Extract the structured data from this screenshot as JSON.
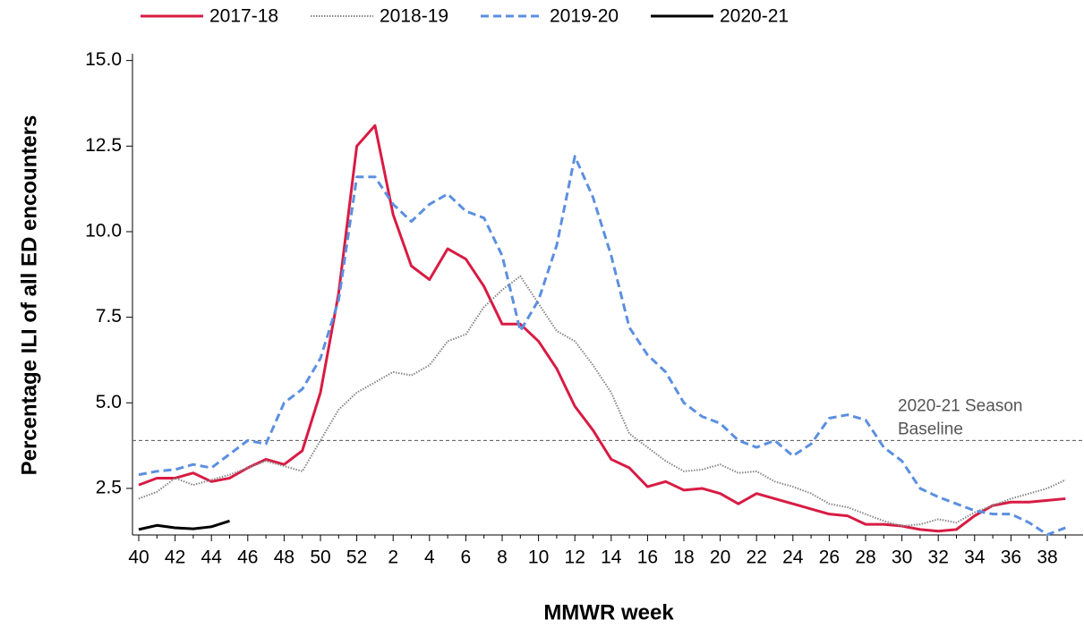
{
  "chart_data": {
    "type": "line",
    "x_label": "MMWR week",
    "y_label": "Percentage ILI of all ED encounters",
    "categories": [
      "40",
      null,
      "42",
      null,
      "44",
      null,
      "46",
      null,
      "48",
      null,
      "50",
      null,
      "52",
      null,
      "2",
      null,
      "4",
      null,
      "6",
      null,
      "8",
      null,
      "10",
      null,
      "12",
      null,
      "14",
      null,
      "16",
      null,
      "18",
      null,
      "20",
      null,
      "22",
      null,
      "24",
      null,
      "26",
      null,
      "28",
      null,
      "30",
      null,
      "32",
      null,
      "34",
      null,
      "36",
      null,
      "38",
      null
    ],
    "ylim": [
      1.14,
      15.2
    ],
    "yticks": [
      {
        "value": 15,
        "label": "15.0"
      },
      12.5,
      {
        "value": 10,
        "label": "10.0"
      },
      7.5,
      {
        "value": 5,
        "label": "5.0"
      },
      2.5
    ],
    "baseline": {
      "value": 3.9,
      "label": [
        "2020-21 Season",
        "Baseline"
      ],
      "color": "#555555"
    },
    "series": [
      {
        "name": "2017-18",
        "color": "#d81b43",
        "style": "solid",
        "values": [
          2.6,
          2.8,
          2.8,
          2.95,
          2.7,
          2.8,
          3.1,
          3.35,
          3.2,
          3.6,
          5.3,
          8.2,
          12.5,
          13.1,
          10.5,
          9.0,
          8.6,
          9.5,
          9.2,
          8.4,
          7.3,
          7.3,
          6.8,
          6.0,
          4.9,
          4.2,
          3.35,
          3.1,
          2.55,
          2.7,
          2.45,
          2.5,
          2.35,
          2.05,
          2.35,
          2.2,
          2.05,
          1.9,
          1.75,
          1.7,
          1.45,
          1.45,
          1.4,
          1.3,
          1.25,
          1.3,
          1.7,
          2.0,
          2.1,
          2.1,
          2.15,
          2.2
        ]
      },
      {
        "name": "2018-19",
        "color": "#888888",
        "style": "dotted",
        "values": [
          2.2,
          2.4,
          2.8,
          2.6,
          2.75,
          2.9,
          3.1,
          3.3,
          3.15,
          3.0,
          3.9,
          4.8,
          5.3,
          5.6,
          5.9,
          5.8,
          6.1,
          6.8,
          7.0,
          7.8,
          8.3,
          8.7,
          7.9,
          7.1,
          6.8,
          6.1,
          5.3,
          4.1,
          3.7,
          3.3,
          3.0,
          3.05,
          3.2,
          2.95,
          3.0,
          2.7,
          2.55,
          2.35,
          2.05,
          1.95,
          1.75,
          1.55,
          1.4,
          1.45,
          1.6,
          1.5,
          1.8,
          2.0,
          2.2,
          2.35,
          2.5,
          2.75
        ]
      },
      {
        "name": "2019-20",
        "color": "#5b8fe0",
        "style": "dashed",
        "values": [
          2.9,
          3.0,
          3.05,
          3.2,
          3.1,
          3.5,
          3.9,
          3.8,
          5.0,
          5.4,
          6.3,
          8.0,
          11.6,
          11.6,
          10.8,
          10.3,
          10.8,
          11.1,
          10.6,
          10.4,
          9.3,
          7.1,
          8.0,
          9.6,
          12.2,
          11.0,
          9.3,
          7.2,
          6.4,
          5.9,
          5.0,
          4.6,
          4.4,
          3.9,
          3.7,
          3.9,
          3.45,
          3.8,
          4.55,
          4.65,
          4.5,
          3.7,
          3.3,
          2.5,
          2.25,
          2.05,
          1.85,
          1.75,
          1.75,
          1.5,
          1.15,
          1.35
        ]
      },
      {
        "name": "2020-21",
        "color": "#000000",
        "style": "solid",
        "values": [
          1.3,
          1.42,
          1.35,
          1.32,
          1.38,
          1.55,
          null,
          null,
          null,
          null,
          null,
          null,
          null,
          null,
          null,
          null,
          null,
          null,
          null,
          null,
          null,
          null,
          null,
          null,
          null,
          null,
          null,
          null,
          null,
          null,
          null,
          null,
          null,
          null,
          null,
          null,
          null,
          null,
          null,
          null,
          null,
          null,
          null,
          null,
          null,
          null,
          null,
          null,
          null,
          null,
          null,
          null
        ]
      }
    ]
  }
}
